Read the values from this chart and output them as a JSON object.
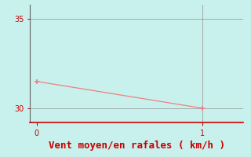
{
  "x": [
    0,
    1
  ],
  "y": [
    31.5,
    30.0
  ],
  "line_color": "#f08080",
  "marker_color": "#f08080",
  "background_color": "#c8f0ec",
  "left_spine_color": "#606060",
  "xlabel": "Vent moyen/en rafales ( km/h )",
  "xlabel_color": "#cc0000",
  "xlabel_fontsize": 9,
  "tick_color": "#cc0000",
  "tick_label_color": "#cc0000",
  "ylim": [
    29.2,
    35.8
  ],
  "xlim": [
    -0.04,
    1.25
  ],
  "yticks": [
    30,
    35
  ],
  "xticks": [
    0,
    1
  ],
  "grid_color": "#909090",
  "bottom_line_color": "#cc0000",
  "marker_size": 4,
  "line_width": 0.9,
  "vertical_line_x": 1,
  "vertical_line_color": "#909090"
}
